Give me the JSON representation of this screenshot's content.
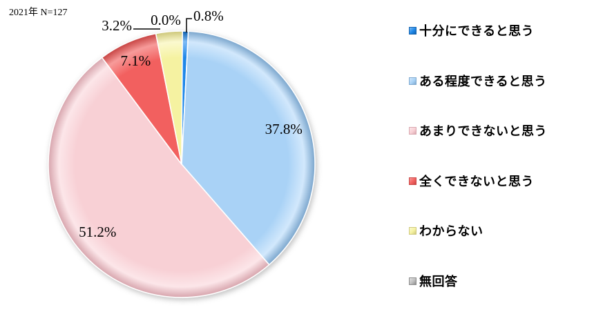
{
  "title": "2021年 N=127",
  "chart_data": {
    "type": "pie",
    "title": "2021年 N=127",
    "sample_size": "N=127",
    "year": "2021年",
    "unit": "%",
    "start_angle_deg": 0,
    "direction": "clockwise",
    "legend_position": "right",
    "grid": false,
    "slices": [
      {
        "label": "十分にできると思う",
        "value": 0.8,
        "display": "0.8%",
        "color": "#1E87E8",
        "light": "#7DBBF5",
        "edge": "#1262AE"
      },
      {
        "label": "ある程度できると思う",
        "value": 37.8,
        "display": "37.8%",
        "color": "#A9D2F6",
        "light": "#D2E8FC",
        "edge": "#7FA9CF"
      },
      {
        "label": "あまりできないと思う",
        "value": 51.2,
        "display": "51.2%",
        "color": "#F8D0D5",
        "light": "#FCE6E9",
        "edge": "#D9A8B0"
      },
      {
        "label": "全くできないと思う",
        "value": 7.1,
        "display": "7.1%",
        "color": "#F2605F",
        "light": "#F79B9A",
        "edge": "#C94746"
      },
      {
        "label": "わからない",
        "value": 3.2,
        "display": "3.2%",
        "color": "#F5F2A1",
        "light": "#FBF9CF",
        "edge": "#CFC97E"
      },
      {
        "label": "無回答",
        "value": 0.0,
        "display": "0.0%",
        "color": "#BFBFBF",
        "light": "#E2E2E2",
        "edge": "#8C8C8C"
      }
    ]
  }
}
